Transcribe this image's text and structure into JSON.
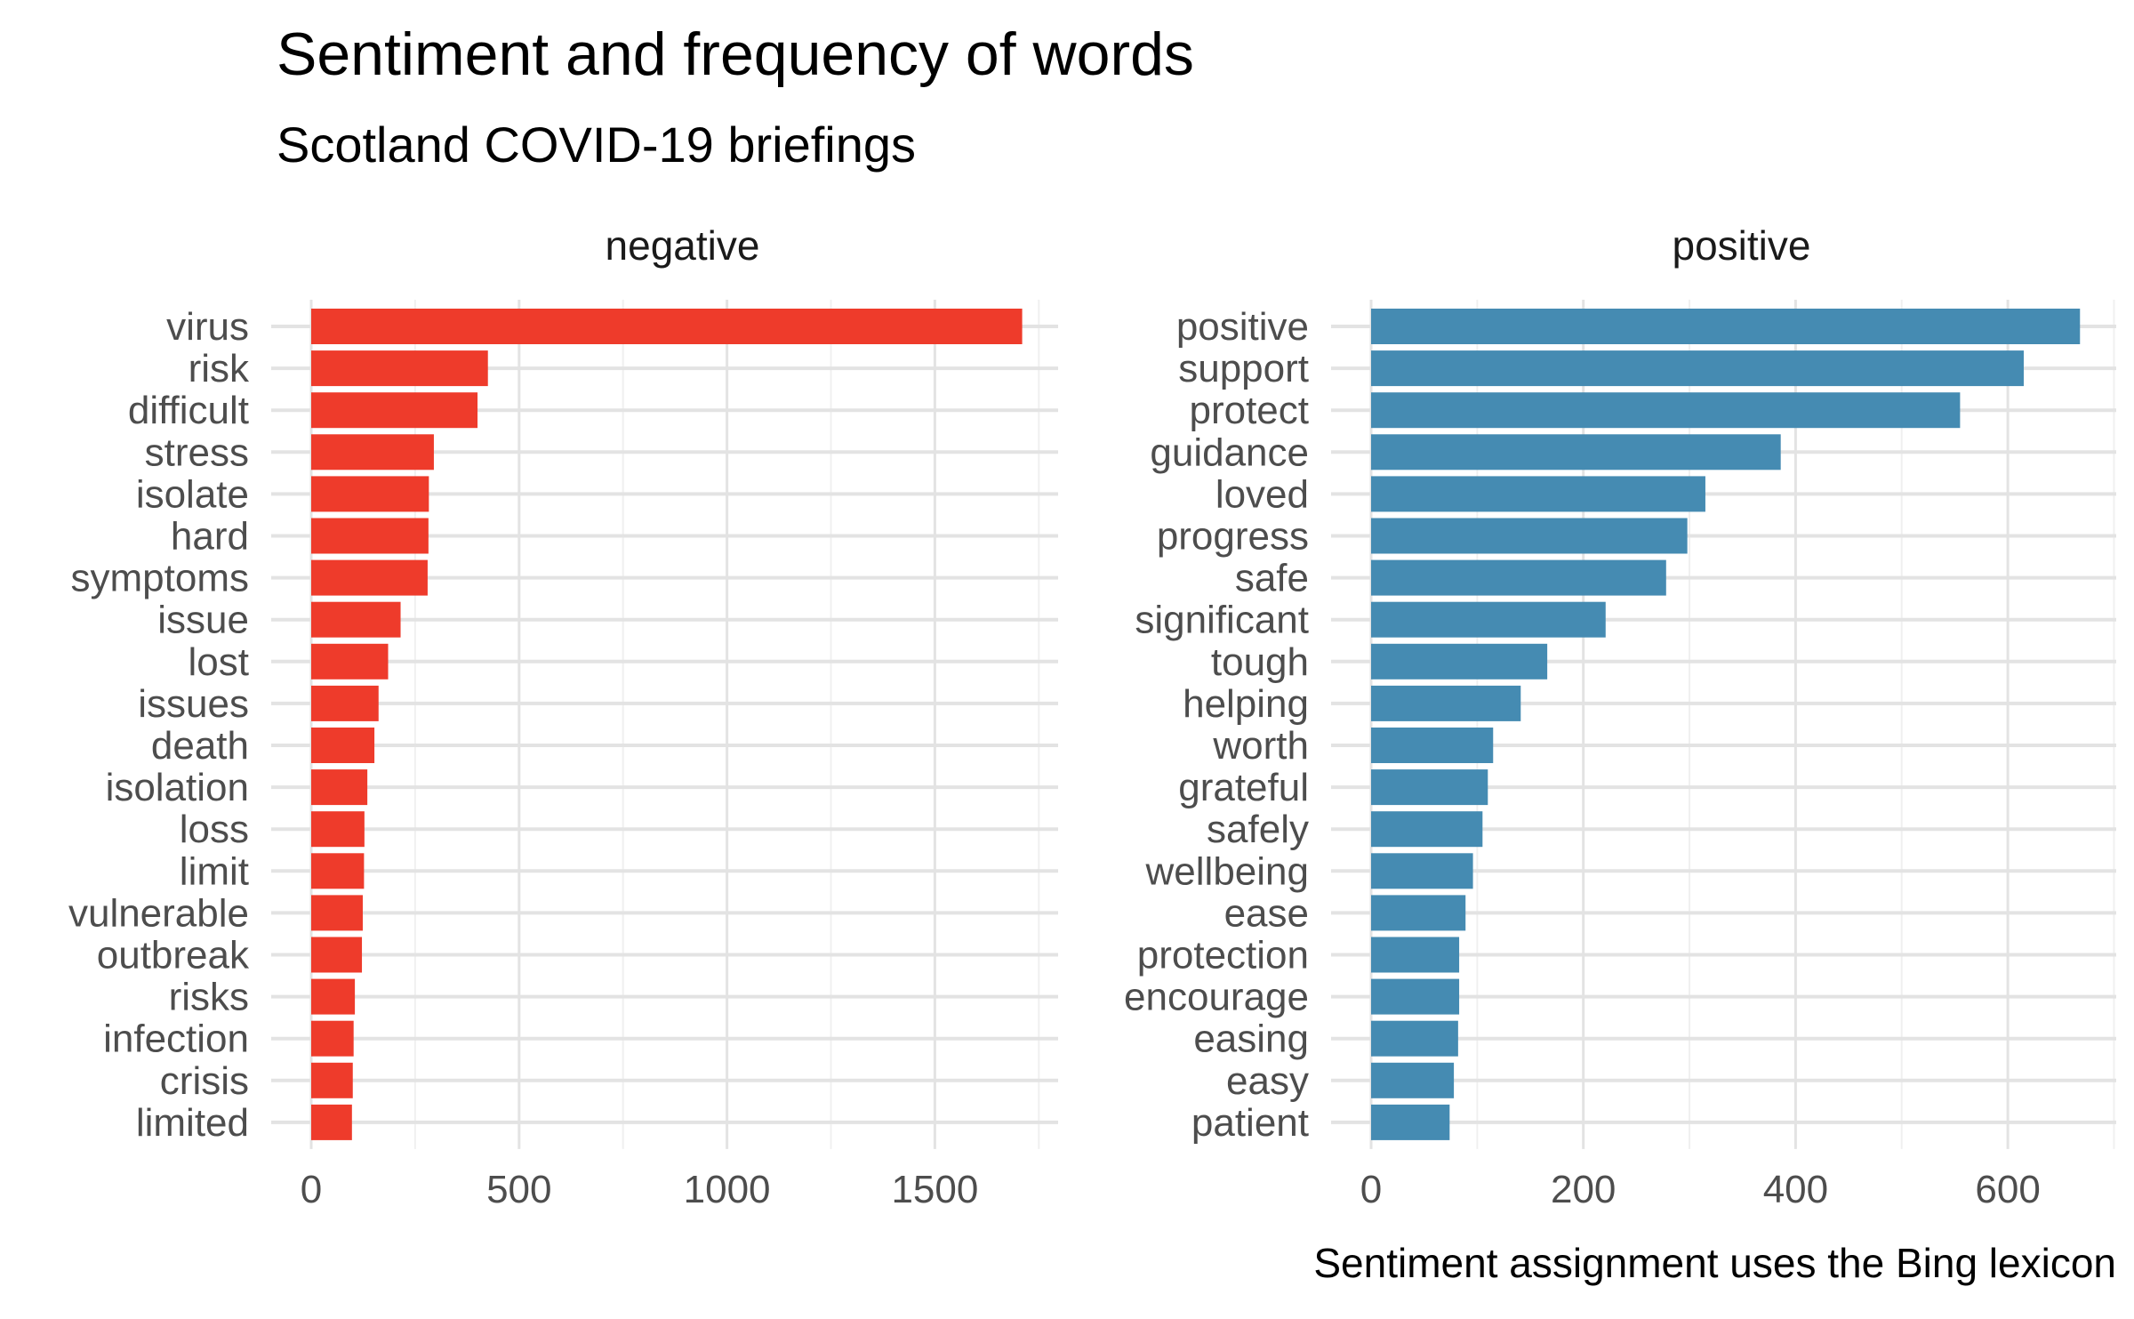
{
  "chart_data": {
    "type": "bar",
    "title": "Sentiment and frequency of words",
    "subtitle": "Scotland COVID-19 briefings",
    "caption": "Sentiment assignment uses the Bing lexicon",
    "orientation": "horizontal",
    "grid": true,
    "facets": [
      {
        "name": "negative",
        "color": "#EE3B2B",
        "xlim": [
          0,
          1750
        ],
        "xticks": [
          0,
          500,
          1000,
          1500
        ],
        "categories": [
          "virus",
          "risk",
          "difficult",
          "stress",
          "isolate",
          "hard",
          "symptoms",
          "issue",
          "lost",
          "issues",
          "death",
          "isolation",
          "loss",
          "limit",
          "vulnerable",
          "outbreak",
          "risks",
          "infection",
          "crisis",
          "limited"
        ],
        "values": [
          1710,
          425,
          400,
          295,
          283,
          282,
          280,
          215,
          185,
          162,
          152,
          135,
          128,
          127,
          124,
          122,
          105,
          102,
          100,
          98
        ]
      },
      {
        "name": "positive",
        "color": "#458BB2",
        "xlim": [
          0,
          700
        ],
        "xticks": [
          0,
          200,
          400,
          600
        ],
        "categories": [
          "positive",
          "support",
          "protect",
          "guidance",
          "loved",
          "progress",
          "safe",
          "significant",
          "tough",
          "helping",
          "worth",
          "grateful",
          "safely",
          "wellbeing",
          "ease",
          "protection",
          "encourage",
          "easing",
          "easy",
          "patient"
        ],
        "values": [
          668,
          615,
          555,
          386,
          315,
          298,
          278,
          221,
          166,
          141,
          115,
          110,
          105,
          96,
          89,
          83,
          83,
          82,
          78,
          74
        ]
      }
    ]
  }
}
